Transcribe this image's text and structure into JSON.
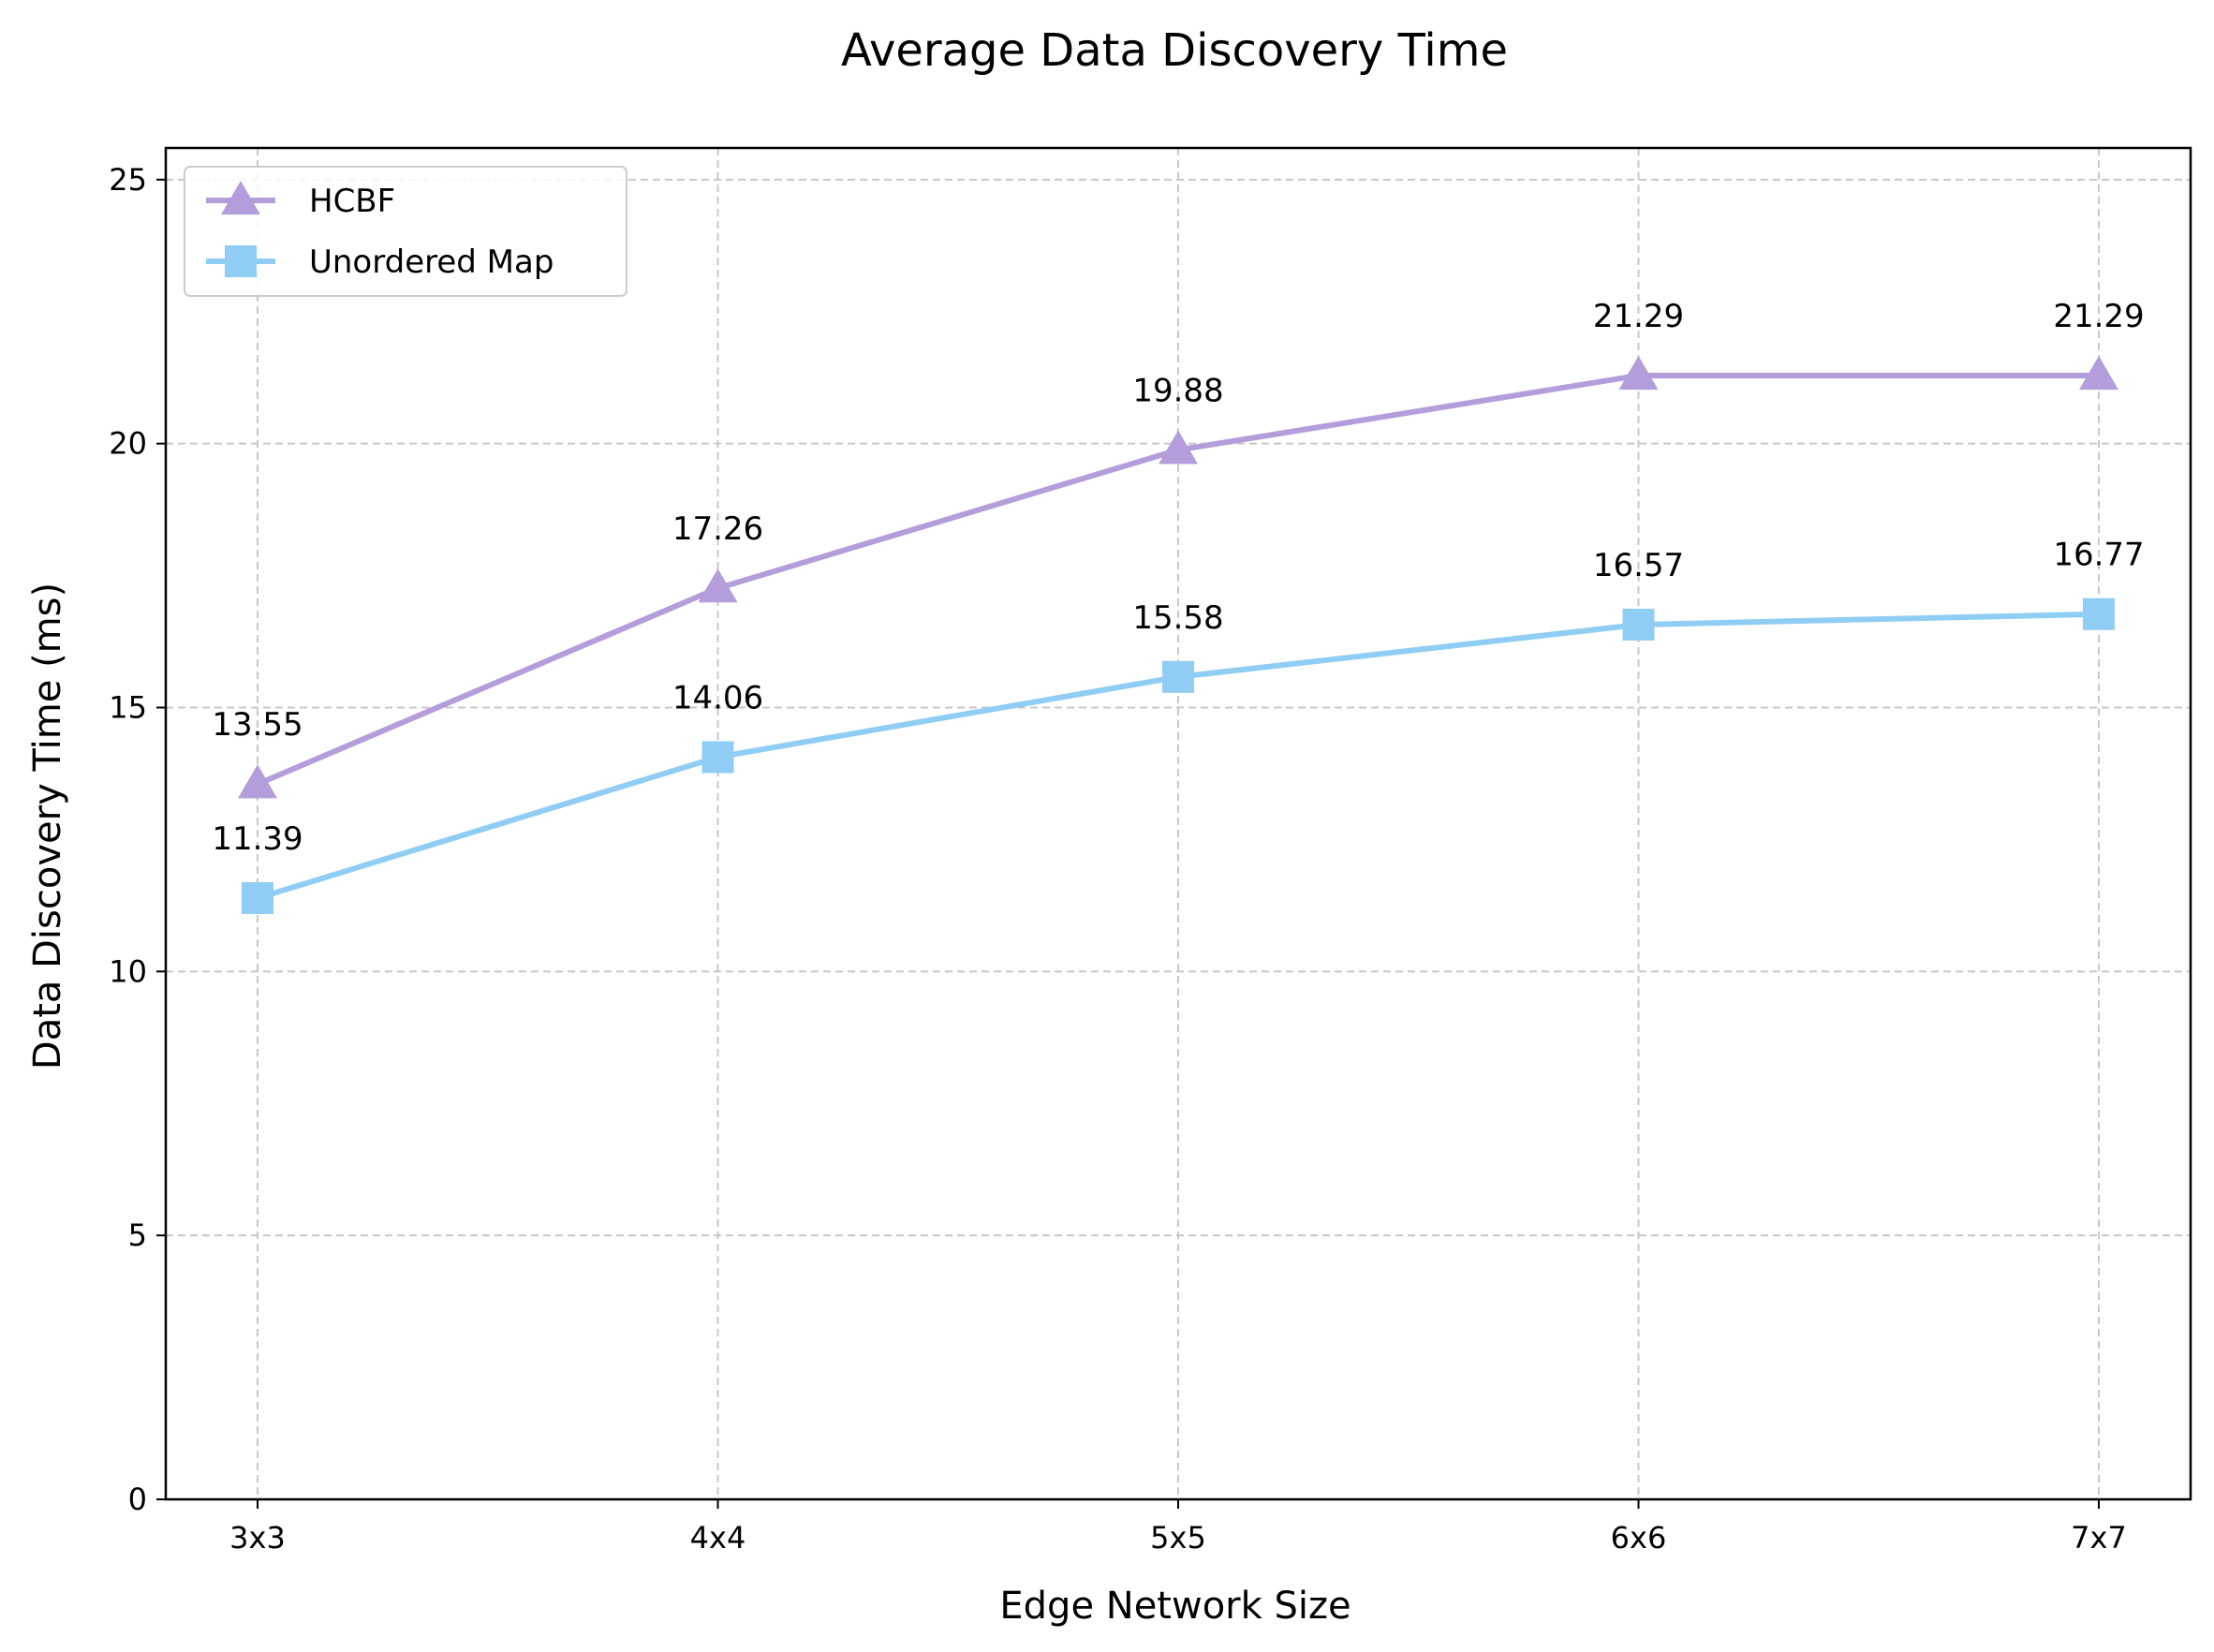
{
  "chart_data": {
    "type": "line",
    "title": "Average Data Discovery Time",
    "xlabel": "Edge Network Size",
    "ylabel": "Data Discovery Time (ms)",
    "categories": [
      "3x3",
      "4x4",
      "5x5",
      "6x6",
      "7x7"
    ],
    "ylim": [
      0,
      25.6
    ],
    "yticks": [
      0,
      5,
      10,
      15,
      20,
      25
    ],
    "grid": true,
    "legend_position": "top-left",
    "series": [
      {
        "name": "HCBF",
        "marker": "triangle",
        "color": "#b39ddb",
        "values": [
          13.55,
          17.26,
          19.88,
          21.29,
          21.29
        ],
        "labels": [
          "13.55",
          "17.26",
          "19.88",
          "21.29",
          "21.29"
        ]
      },
      {
        "name": "Unordered Map",
        "marker": "square",
        "color": "#90cdf4",
        "values": [
          11.39,
          14.06,
          15.58,
          16.57,
          16.77
        ],
        "labels": [
          "11.39",
          "14.06",
          "15.58",
          "16.57",
          "16.77"
        ]
      }
    ]
  }
}
